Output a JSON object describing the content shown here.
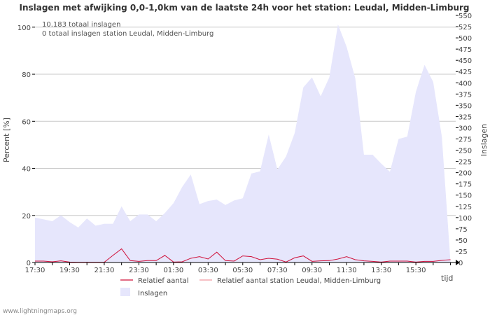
{
  "chart_data": {
    "type": "area",
    "title": "Inslagen met afwijking 0,0-1,0km van de laatste 24h voor het station: Leudal, Midden-Limburg",
    "ylabel_left": "Percent   [%]",
    "ylabel_right": "Inslagen",
    "xlabel": "tijd",
    "annotations": [
      "10.183 totaal inslagen",
      "0 totaal inslagen station Leudal, Midden-Limburg"
    ],
    "ylim_left": [
      0,
      105
    ],
    "ylim_right": [
      0,
      550
    ],
    "left_ticks": [
      "0",
      "20",
      "40",
      "60",
      "80",
      "100"
    ],
    "left_tick_values": [
      0,
      20,
      40,
      60,
      80,
      100
    ],
    "right_ticks": [
      "0",
      "25",
      "50",
      "75",
      "100",
      "125",
      "150",
      "175",
      "200",
      "225",
      "250",
      "275",
      "300",
      "325",
      "350",
      "375",
      "400",
      "425",
      "450",
      "475",
      "500",
      "525",
      "550"
    ],
    "right_tick_values": [
      0,
      25,
      50,
      75,
      100,
      125,
      150,
      175,
      200,
      225,
      250,
      275,
      300,
      325,
      350,
      375,
      400,
      425,
      450,
      475,
      500,
      525,
      550
    ],
    "x_tick_labels": [
      "17:30",
      "19:30",
      "21:30",
      "23:30",
      "01:30",
      "03:30",
      "05:30",
      "07:30",
      "09:30",
      "11:30",
      "13:30",
      "15:30"
    ],
    "x_tick_hours": [
      0,
      2,
      4,
      6,
      8,
      10,
      12,
      14,
      16,
      18,
      20,
      22
    ],
    "x_range_hours": [
      0,
      24.3
    ],
    "legend": {
      "relatief": "Relatief aantal",
      "relatief_station": "Relatief aantal station Leudal, Midden-Limburg",
      "inslagen": "Inslagen"
    },
    "colors": {
      "inslagen_fill": "#e6e6fc",
      "relatief": "#d0103a",
      "relatief_station": "#f29aa0",
      "grid": "#c8c8c8",
      "axis": "#000000"
    },
    "series": [
      {
        "name": "Inslagen",
        "axis": "right",
        "x": [
          0,
          0.5,
          1,
          1.5,
          2,
          2.5,
          3,
          3.5,
          4,
          4.5,
          5,
          5.5,
          6,
          6.5,
          7,
          7.5,
          8,
          8.5,
          9,
          9.5,
          10,
          10.5,
          11,
          11.5,
          12,
          12.5,
          13,
          13.5,
          14,
          14.5,
          15,
          15.5,
          16,
          16.5,
          17,
          17.5,
          18,
          18.5,
          19,
          19.5,
          20,
          20.5,
          21,
          21.5,
          22,
          22.5,
          23,
          23.5,
          24,
          24.3
        ],
        "values": [
          100,
          96,
          92,
          105,
          90,
          78,
          98,
          82,
          86,
          86,
          125,
          92,
          107,
          107,
          92,
          110,
          132,
          168,
          196,
          130,
          137,
          140,
          128,
          138,
          143,
          198,
          203,
          285,
          207,
          236,
          288,
          390,
          412,
          370,
          412,
          530,
          480,
          410,
          240,
          240,
          220,
          202,
          275,
          280,
          380,
          440,
          402,
          280,
          0,
          0
        ]
      },
      {
        "name": "Relatief aantal",
        "axis": "left",
        "x": [
          0,
          0.5,
          1,
          1.5,
          2,
          2.5,
          3,
          3.5,
          4,
          4.5,
          5,
          5.5,
          6,
          6.5,
          7,
          7.5,
          8,
          8.5,
          9,
          9.5,
          10,
          10.5,
          11,
          11.5,
          12,
          12.5,
          13,
          13.5,
          14,
          14.5,
          15,
          15.5,
          16,
          16.5,
          17,
          17.5,
          18,
          18.5,
          19,
          19.5,
          20,
          20.5,
          21,
          21.5,
          22,
          22.5,
          23,
          23.5,
          24
        ],
        "values": [
          0.6,
          0.6,
          0.3,
          0.7,
          0.2,
          0.1,
          0.1,
          0.1,
          0.1,
          3.0,
          5.8,
          0.8,
          0.5,
          0.8,
          0.8,
          3.0,
          0.2,
          0.3,
          1.8,
          2.5,
          1.5,
          4.4,
          0.8,
          0.6,
          2.8,
          2.5,
          1.2,
          1.8,
          1.4,
          0.2,
          2.0,
          2.8,
          0.5,
          0.7,
          0.8,
          1.5,
          2.5,
          1.2,
          0.7,
          0.5,
          0.2,
          0.6,
          0.6,
          0.6,
          0.2,
          0.5,
          0.5,
          0.9,
          1.2
        ]
      },
      {
        "name": "Relatief aantal station Leudal, Midden-Limburg",
        "axis": "left",
        "x": [
          0,
          24
        ],
        "values": [
          0,
          0
        ]
      }
    ],
    "watermark": "www.lightningmaps.org"
  }
}
